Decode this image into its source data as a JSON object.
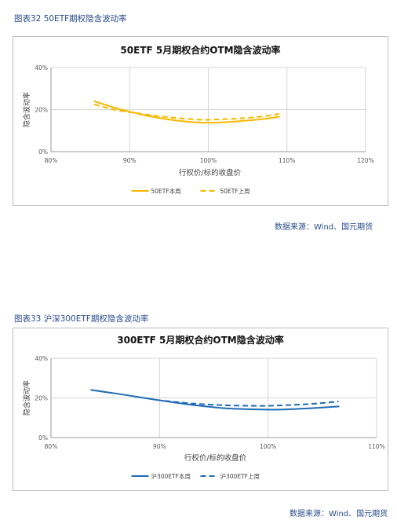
{
  "charts": [
    {
      "caption": "图表32 50ETF期权隐含波动率",
      "source": "数据来源：Wind、国元期货",
      "chart_data": {
        "type": "line",
        "title": "50ETF 5月期权合约OTM隐含波动率",
        "xlabel": "行权价/标的收盘价",
        "ylabel": "隐含波动率",
        "xlim": [
          0.8,
          1.2
        ],
        "ylim": [
          0,
          0.4
        ],
        "x_ticks": [
          0.8,
          0.9,
          1.0,
          1.1,
          1.2
        ],
        "x_tick_labels": [
          "80%",
          "90%",
          "100%",
          "110%",
          "120%"
        ],
        "y_ticks": [
          0,
          0.2,
          0.4
        ],
        "y_tick_labels": [
          "0%",
          "20%",
          "40%"
        ],
        "grid": "vertical and horizontal",
        "legend_position": "bottom",
        "color": "#f5b800",
        "series": [
          {
            "name": "50ETF本周",
            "style": "solid",
            "x": [
              0.855,
              0.88,
              0.9,
              0.93,
              0.96,
              0.99,
              1.01,
              1.04,
              1.07,
              1.09
            ],
            "y": [
              0.24,
              0.21,
              0.19,
              0.165,
              0.148,
              0.138,
              0.138,
              0.145,
              0.155,
              0.167
            ]
          },
          {
            "name": "50ETF上周",
            "style": "dashed",
            "x": [
              0.855,
              0.88,
              0.9,
              0.93,
              0.96,
              0.99,
              1.01,
              1.04,
              1.07,
              1.09
            ],
            "y": [
              0.225,
              0.2,
              0.188,
              0.172,
              0.16,
              0.152,
              0.153,
              0.158,
              0.168,
              0.18
            ]
          }
        ]
      }
    },
    {
      "caption": "图表33 沪深300ETF期权隐含波动率",
      "source": "数据来源：Wind、国元期货",
      "chart_data": {
        "type": "line",
        "title": "300ETF 5月期权合约OTM隐含波动率",
        "xlabel": "行权价/标的收盘价",
        "ylabel": "隐含波动率",
        "xlim": [
          0.8,
          1.1
        ],
        "ylim": [
          0,
          0.4
        ],
        "x_ticks": [
          0.8,
          0.9,
          1.0,
          1.1
        ],
        "x_tick_labels": [
          "80%",
          "90%",
          "100%",
          "110%"
        ],
        "y_ticks": [
          0,
          0.2,
          0.4
        ],
        "y_tick_labels": [
          "0%",
          "20%",
          "40%"
        ],
        "grid": "vertical and horizontal",
        "legend_position": "bottom",
        "color": "#1f6bb5",
        "series": [
          {
            "name": "沪300ETF本周",
            "style": "solid",
            "x": [
              0.837,
              0.86,
              0.88,
              0.9,
              0.93,
              0.96,
              0.99,
              1.01,
              1.04,
              1.065
            ],
            "y": [
              0.24,
              0.222,
              0.205,
              0.188,
              0.165,
              0.148,
              0.142,
              0.141,
              0.148,
              0.157
            ]
          },
          {
            "name": "沪300ETF上周",
            "style": "dashed",
            "x": [
              0.905,
              0.93,
              0.96,
              0.99,
              1.01,
              1.04,
              1.065
            ],
            "y": [
              0.185,
              0.172,
              0.163,
              0.16,
              0.162,
              0.17,
              0.182
            ]
          }
        ]
      }
    }
  ]
}
